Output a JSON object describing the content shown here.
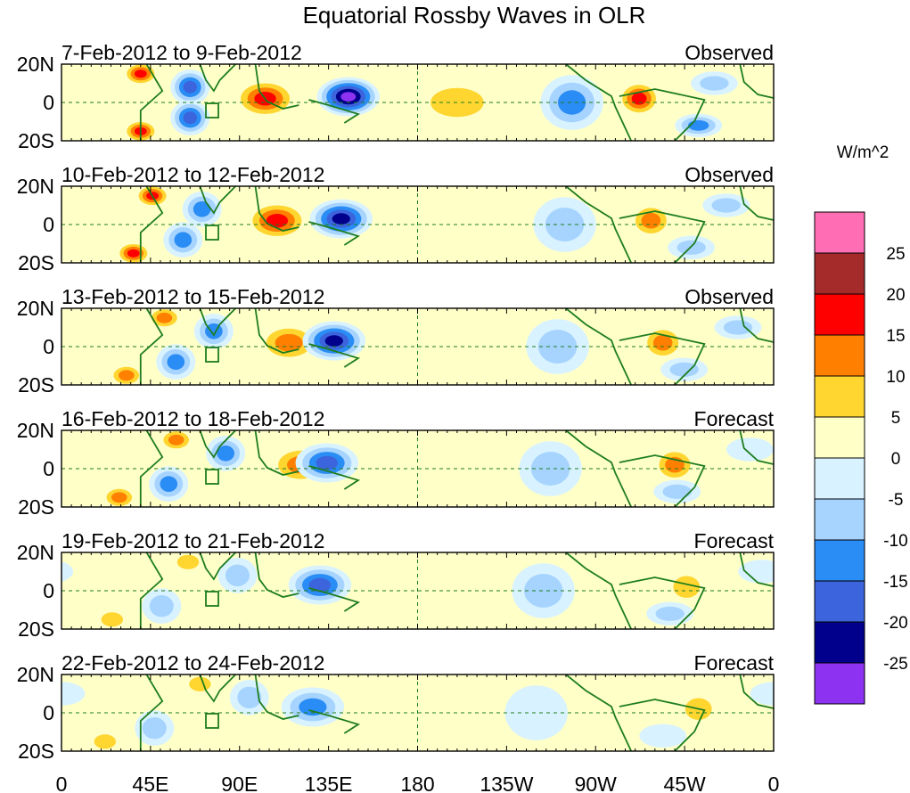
{
  "figure": {
    "title": "Equatorial Rossby Waves in OLR",
    "units_label": "W/m^2"
  },
  "y_ticks": [
    "20N",
    "0",
    "20S"
  ],
  "x_ticks": [
    "0",
    "45E",
    "90E",
    "135E",
    "180",
    "135W",
    "90W",
    "45W",
    "0"
  ],
  "colorbar": {
    "tick_labels": [
      "25",
      "20",
      "15",
      "10",
      "5",
      "0",
      "-5",
      "-10",
      "-15",
      "-20",
      "-25"
    ],
    "levels": [
      {
        "color": "#ff6eb4",
        "min": 30,
        "max": 25
      },
      {
        "color": "#a52a2a",
        "min": 25,
        "max": 20
      },
      {
        "color": "#ff0000",
        "min": 20,
        "max": 15
      },
      {
        "color": "#ff7f00",
        "min": 15,
        "max": 10
      },
      {
        "color": "#ffd530",
        "min": 10,
        "max": 5
      },
      {
        "color": "#ffffc8",
        "min": 5,
        "max": 0
      },
      {
        "color": "#d9f2ff",
        "min": 0,
        "max": -5
      },
      {
        "color": "#a6d4ff",
        "min": -5,
        "max": -10
      },
      {
        "color": "#2a8cf5",
        "min": -10,
        "max": -15
      },
      {
        "color": "#3c64dc",
        "min": -15,
        "max": -20
      },
      {
        "color": "#00008c",
        "min": -20,
        "max": -25
      },
      {
        "color": "#8c32f0",
        "min": -25,
        "max": -30
      }
    ]
  },
  "panels": [
    {
      "date_range": "7-Feb-2012 to 9-Feb-2012",
      "status": "Observed",
      "shift": 0
    },
    {
      "date_range": "10-Feb-2012 to 12-Feb-2012",
      "status": "Observed",
      "shift": 6
    },
    {
      "date_range": "13-Feb-2012 to 15-Feb-2012",
      "status": "Observed",
      "shift": 12
    },
    {
      "date_range": "16-Feb-2012 to 18-Feb-2012",
      "status": "Forecast",
      "shift": 18
    },
    {
      "date_range": "19-Feb-2012 to 21-Feb-2012",
      "status": "Forecast",
      "shift": 24
    },
    {
      "date_range": "22-Feb-2012 to 24-Feb-2012",
      "status": "Forecast",
      "shift": 30
    }
  ],
  "anomaly_features": [
    {
      "lon": 40,
      "lat": 15,
      "value": 22,
      "wlon": 9,
      "wlat": 6
    },
    {
      "lon": 40,
      "lat": -15,
      "value": 22,
      "wlon": 9,
      "wlat": 6
    },
    {
      "lon": 65,
      "lat": 8,
      "value": -20,
      "wlon": 10,
      "wlat": 9
    },
    {
      "lon": 65,
      "lat": -8,
      "value": -20,
      "wlon": 10,
      "wlat": 9
    },
    {
      "lon": 103,
      "lat": 2,
      "value": 22,
      "wlon": 16,
      "wlat": 10
    },
    {
      "lon": 145,
      "lat": 3,
      "value": -30,
      "wlon": 16,
      "wlat": 10
    },
    {
      "lon": 200,
      "lat": 0,
      "value": 10,
      "wlon": 22,
      "wlat": 12
    },
    {
      "lon": 258,
      "lat": 0,
      "value": -15,
      "wlon": 16,
      "wlat": 14
    },
    {
      "lon": 292,
      "lat": 2,
      "value": 20,
      "wlon": 11,
      "wlat": 9
    },
    {
      "lon": 322,
      "lat": -12,
      "value": -15,
      "wlon": 12,
      "wlat": 6
    },
    {
      "lon": 330,
      "lat": 10,
      "value": -12,
      "wlon": 12,
      "wlat": 6
    }
  ]
}
